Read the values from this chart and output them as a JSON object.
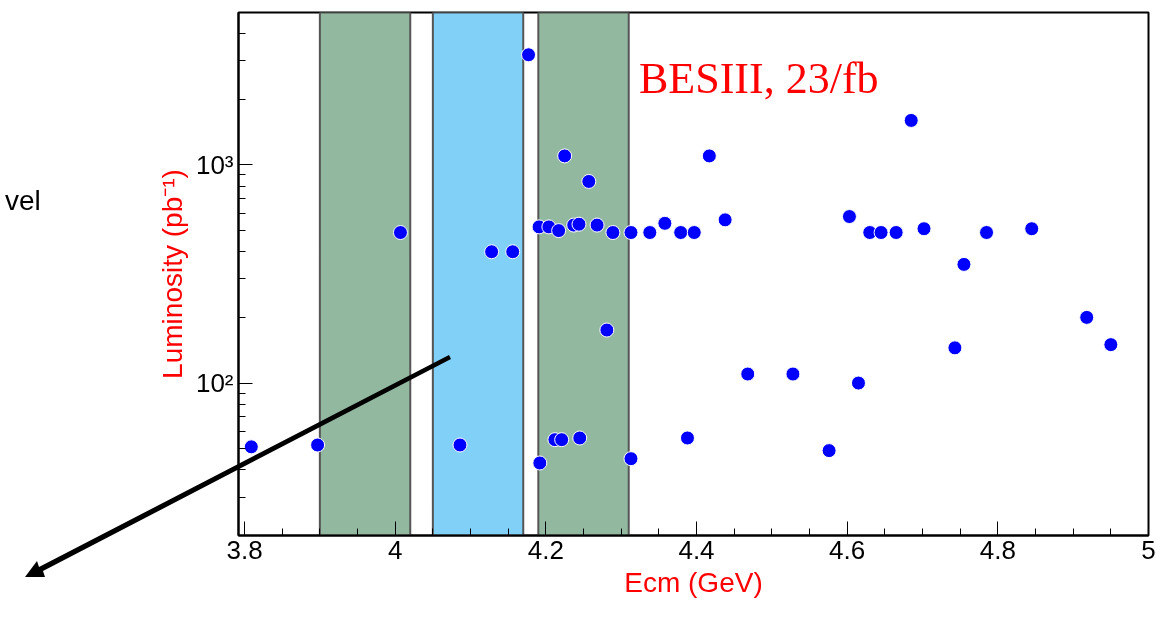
{
  "chart_data": {
    "type": "scatter",
    "xlabel": "Ecm (GeV)",
    "ylabel": "Luminosity (pb⁻¹)",
    "annotations": [
      "BESIII, 23/fb",
      "vel"
    ],
    "x": [
      3.809,
      3.897,
      4.007,
      4.086,
      4.128,
      4.156,
      4.177,
      4.191,
      4.192,
      4.204,
      4.212,
      4.217,
      4.221,
      4.225,
      4.237,
      4.244,
      4.245,
      4.257,
      4.268,
      4.281,
      4.289,
      4.313,
      4.313,
      4.338,
      4.358,
      4.379,
      4.388,
      4.397,
      4.417,
      4.438,
      4.468,
      4.528,
      4.576,
      4.603,
      4.615,
      4.63,
      4.645,
      4.665,
      4.685,
      4.702,
      4.743,
      4.755,
      4.785,
      4.845,
      4.918,
      4.95
    ],
    "series": [
      {
        "color": "#0000ff",
        "values": [
          51,
          52,
          490,
          52,
          400,
          400,
          3200,
          520,
          43,
          520,
          55,
          500,
          55,
          1100,
          530,
          535,
          56,
          840,
          530,
          175,
          490,
          490,
          45,
          490,
          540,
          490,
          56,
          490,
          1100,
          560,
          110,
          110,
          49,
          580,
          100,
          490,
          490,
          490,
          1600,
          510,
          145,
          350,
          490,
          510,
          200,
          150
        ]
      }
    ],
    "marker": "circle",
    "log": "y",
    "grid": false,
    "xlim": [
      3.792,
      5
    ],
    "ylim": [
      20,
      5000
    ],
    "xticks": [
      3.8,
      4,
      4.2,
      4.4,
      4.6,
      4.8,
      5
    ],
    "yticks": [
      {
        "value": 100,
        "label": "10²"
      },
      {
        "value": 1000,
        "label": "10³"
      }
    ],
    "bands": [
      {
        "axis": "x",
        "from": 3.9,
        "to": 4.02,
        "color": "#93b8a0"
      },
      {
        "axis": "x",
        "from": 4.05,
        "to": 4.17,
        "color": "#80d0f8"
      },
      {
        "axis": "x",
        "from": 4.19,
        "to": 4.31,
        "color": "#93b8a0"
      }
    ]
  }
}
